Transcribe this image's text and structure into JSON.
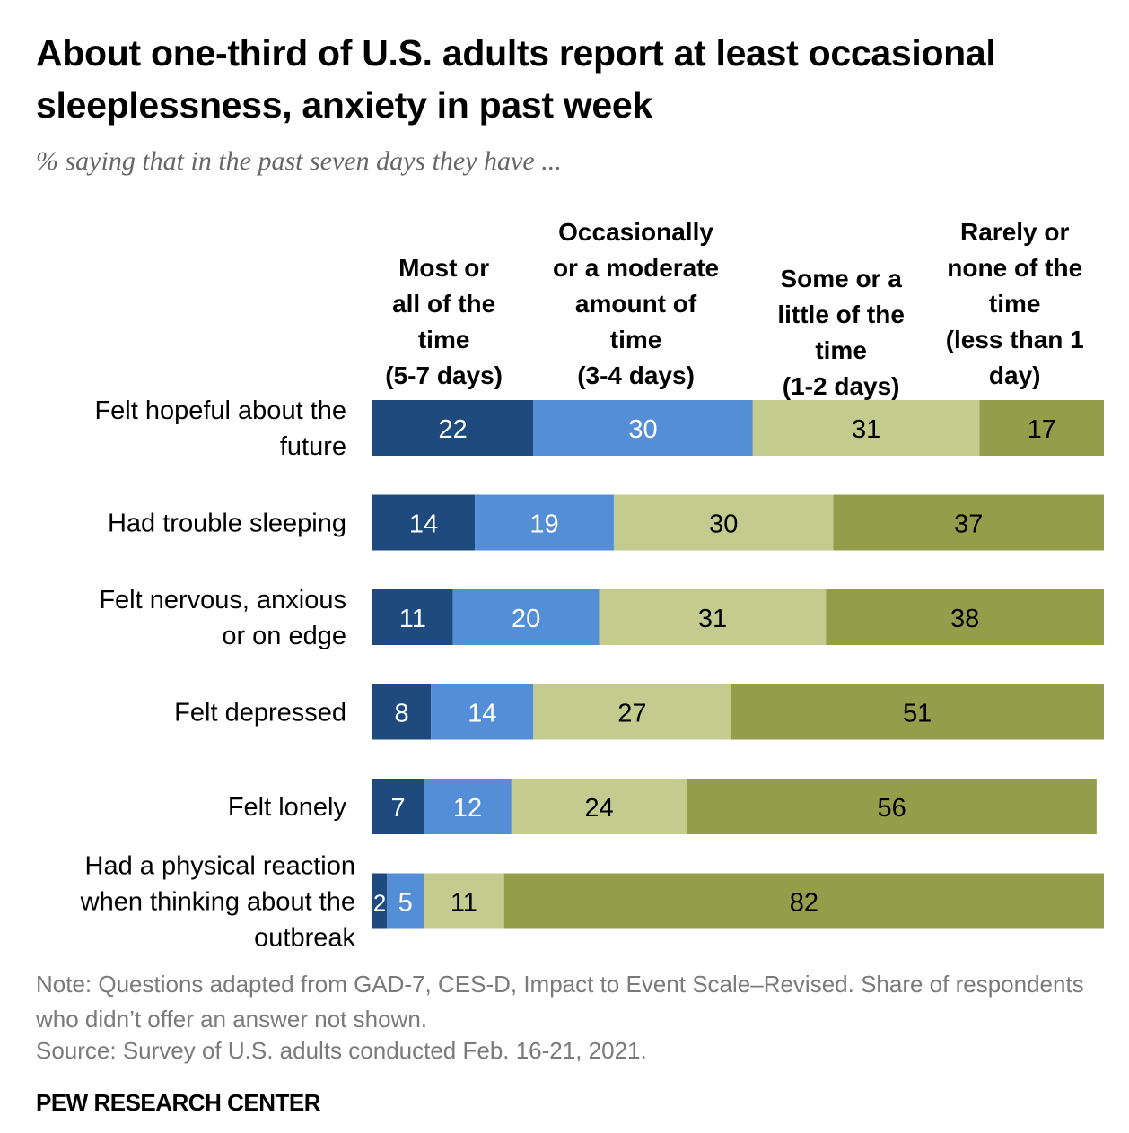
{
  "header": {
    "title": "About one-third of U.S. adults report at least occasional sleeplessness, anxiety in past week",
    "subtitle": "% saying that in the past seven days they have ..."
  },
  "footer": {
    "note": "Note: Questions adapted from GAD-7, CES-D, Impact to Event Scale–Revised. Share of respondents who didn’t offer an answer not shown.",
    "source": "Source: Survey of U.S. adults conducted Feb. 16-21, 2021.",
    "brand": "PEW RESEARCH CENTER"
  },
  "chart_data": {
    "type": "bar",
    "orientation": "horizontal",
    "stacked": true,
    "title": "About one-third of U.S. adults report at least occasional sleeplessness, anxiety in past week",
    "subtitle": "% saying that in the past seven days they have ...",
    "xlabel": "",
    "ylabel": "",
    "xlim": [
      0,
      100
    ],
    "grid": false,
    "legend_position": "top (column headers)",
    "categories": [
      [
        "Felt hopeful about the",
        "future"
      ],
      [
        "Had trouble sleeping"
      ],
      [
        "Felt nervous, anxious",
        "or on edge"
      ],
      [
        "Felt depressed"
      ],
      [
        "Felt lonely"
      ],
      [
        "Had a physical reaction",
        "when thinking about the",
        "outbreak"
      ]
    ],
    "series": [
      {
        "name": "Most or all of the time (5-7 days)",
        "header_lines": [
          "Most or",
          "all of the",
          "time",
          "(5-7 days)"
        ],
        "color": "#1f4a7e",
        "label_color": "#ffffff",
        "values": [
          22,
          14,
          11,
          8,
          7,
          2
        ]
      },
      {
        "name": "Occasionally or a moderate amount of time (3-4 days)",
        "header_lines": [
          "Occasionally",
          "or a moderate",
          "amount of",
          "time",
          "(3-4 days)"
        ],
        "color": "#548ed6",
        "label_color": "#ffffff",
        "values": [
          30,
          19,
          20,
          14,
          12,
          5
        ]
      },
      {
        "name": "Some or a little of the time (1-2 days)",
        "header_lines": [
          "Some or a",
          "little of the",
          "time",
          "(1-2 days)"
        ],
        "color": "#c3cb8f",
        "label_color": "#000000",
        "values": [
          31,
          30,
          31,
          27,
          24,
          11
        ]
      },
      {
        "name": "Rarely or none of the time (less than 1 day)",
        "header_lines": [
          "Rarely or",
          "none of the",
          "time",
          "(less than 1",
          "day)"
        ],
        "color": "#939d4a",
        "label_color": "#000000",
        "values": [
          17,
          37,
          38,
          51,
          56,
          82
        ]
      }
    ]
  }
}
